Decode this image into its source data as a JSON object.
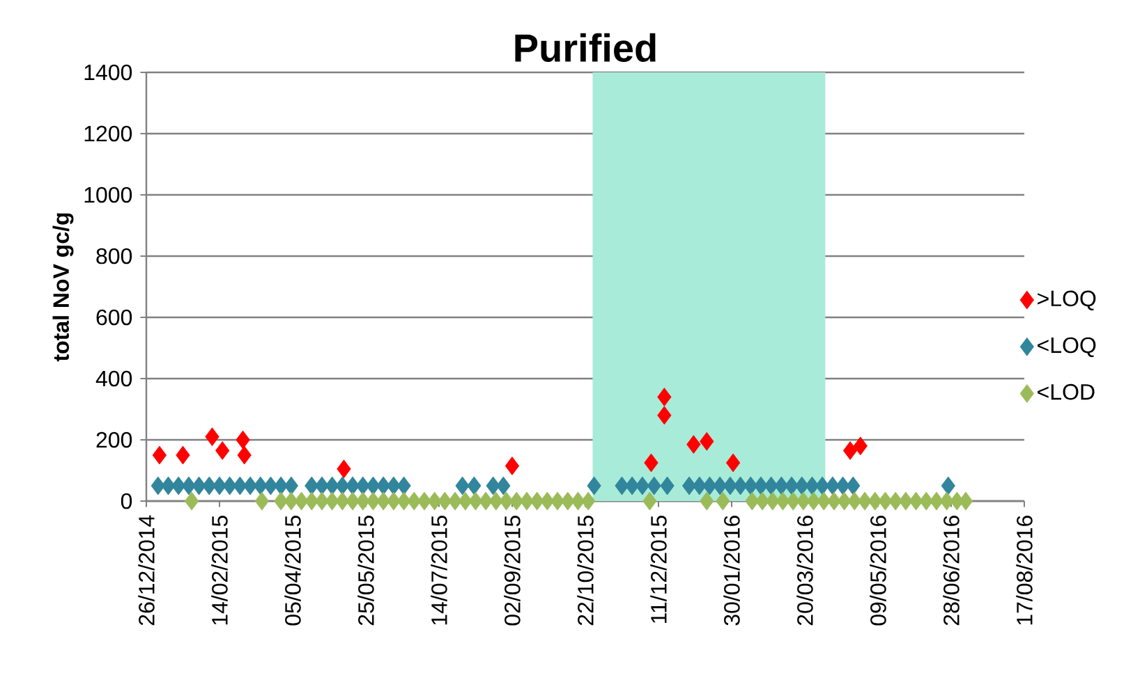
{
  "chart_data": {
    "type": "scatter",
    "title": "Purified",
    "ylabel": "total NoV gc/g",
    "xlim": [
      "2014-12-26",
      "2016-08-17"
    ],
    "xticks": [
      {
        "value": "2014-12-26",
        "label": "26/12/2014"
      },
      {
        "value": "2015-02-14",
        "label": "14/02/2015"
      },
      {
        "value": "2015-04-05",
        "label": "05/04/2015"
      },
      {
        "value": "2015-05-25",
        "label": "25/05/2015"
      },
      {
        "value": "2015-07-14",
        "label": "14/07/2015"
      },
      {
        "value": "2015-09-02",
        "label": "02/09/2015"
      },
      {
        "value": "2015-10-22",
        "label": "22/10/2015"
      },
      {
        "value": "2015-12-11",
        "label": "11/12/2015"
      },
      {
        "value": "2016-01-30",
        "label": "30/01/2016"
      },
      {
        "value": "2016-03-20",
        "label": "20/03/2016"
      },
      {
        "value": "2016-05-09",
        "label": "09/05/2016"
      },
      {
        "value": "2016-06-28",
        "label": "28/06/2016"
      },
      {
        "value": "2016-08-17",
        "label": "17/08/2016"
      }
    ],
    "ylim": [
      0,
      1400
    ],
    "yticks": [
      0,
      200,
      400,
      600,
      800,
      1000,
      1200,
      1400
    ],
    "grid": "y",
    "legend": "right",
    "marker": "diamond",
    "bands": [
      {
        "axis": "x",
        "from": "2015-10-27",
        "to": "2016-04-03",
        "color": "#a8ebd8"
      }
    ],
    "series": [
      {
        "name": ">LOQ",
        "color": "#ff0000",
        "x": [
          "2015-01-04",
          "2015-01-20",
          "2015-02-09",
          "2015-02-16",
          "2015-03-02",
          "2015-03-03",
          "2015-05-10",
          "2015-09-02",
          "2015-12-06",
          "2015-12-15",
          "2015-12-15",
          "2016-01-04",
          "2016-01-13",
          "2016-01-31",
          "2016-04-20",
          "2016-04-27"
        ],
        "values": [
          150,
          150,
          210,
          165,
          200,
          150,
          105,
          115,
          125,
          340,
          280,
          185,
          195,
          125,
          165,
          180
        ]
      },
      {
        "name": "<LOQ",
        "color": "#31859c",
        "x": [
          "2015-01-03",
          "2015-01-10",
          "2015-01-17",
          "2015-01-24",
          "2015-01-31",
          "2015-02-07",
          "2015-02-14",
          "2015-02-21",
          "2015-02-28",
          "2015-03-07",
          "2015-03-14",
          "2015-03-21",
          "2015-03-28",
          "2015-04-04",
          "2015-04-18",
          "2015-04-25",
          "2015-05-02",
          "2015-05-09",
          "2015-05-16",
          "2015-05-23",
          "2015-05-30",
          "2015-06-06",
          "2015-06-13",
          "2015-06-20",
          "2015-07-30",
          "2015-08-07",
          "2015-08-20",
          "2015-08-27",
          "2015-10-28",
          "2015-11-16",
          "2015-11-23",
          "2015-11-30",
          "2015-12-08",
          "2015-12-17",
          "2016-01-01",
          "2016-01-08",
          "2016-01-15",
          "2016-01-22",
          "2016-01-29",
          "2016-02-05",
          "2016-02-12",
          "2016-02-19",
          "2016-02-26",
          "2016-03-04",
          "2016-03-11",
          "2016-03-18",
          "2016-03-25",
          "2016-04-01",
          "2016-04-08",
          "2016-04-15",
          "2016-04-22",
          "2016-06-26"
        ],
        "values": [
          50,
          50,
          50,
          50,
          50,
          50,
          50,
          50,
          50,
          50,
          50,
          50,
          50,
          50,
          50,
          50,
          50,
          50,
          50,
          50,
          50,
          50,
          50,
          50,
          50,
          50,
          50,
          50,
          50,
          50,
          50,
          50,
          50,
          50,
          50,
          50,
          50,
          50,
          50,
          50,
          50,
          50,
          50,
          50,
          50,
          50,
          50,
          50,
          50,
          50,
          50,
          50
        ]
      },
      {
        "name": "<LOD",
        "color": "#9bbb59",
        "x": [
          "2015-01-26",
          "2015-03-15",
          "2015-03-28",
          "2015-04-04",
          "2015-04-11",
          "2015-04-18",
          "2015-04-25",
          "2015-05-02",
          "2015-05-09",
          "2015-05-16",
          "2015-05-23",
          "2015-05-30",
          "2015-06-06",
          "2015-06-13",
          "2015-06-20",
          "2015-06-27",
          "2015-07-04",
          "2015-07-11",
          "2015-07-18",
          "2015-07-25",
          "2015-08-01",
          "2015-08-08",
          "2015-08-15",
          "2015-08-22",
          "2015-08-29",
          "2015-09-05",
          "2015-09-12",
          "2015-09-19",
          "2015-09-26",
          "2015-10-03",
          "2015-10-10",
          "2015-10-17",
          "2015-10-24",
          "2015-12-05",
          "2016-01-13",
          "2016-01-24",
          "2016-02-13",
          "2016-02-20",
          "2016-02-27",
          "2016-03-05",
          "2016-03-12",
          "2016-03-19",
          "2016-03-26",
          "2016-04-02",
          "2016-04-09",
          "2016-04-16",
          "2016-04-23",
          "2016-04-30",
          "2016-05-07",
          "2016-05-14",
          "2016-05-21",
          "2016-05-28",
          "2016-06-04",
          "2016-06-11",
          "2016-06-18",
          "2016-06-25",
          "2016-07-02",
          "2016-07-08"
        ],
        "values": [
          0,
          0,
          0,
          0,
          0,
          0,
          0,
          0,
          0,
          0,
          0,
          0,
          0,
          0,
          0,
          0,
          0,
          0,
          0,
          0,
          0,
          0,
          0,
          0,
          0,
          0,
          0,
          0,
          0,
          0,
          0,
          0,
          0,
          0,
          0,
          0,
          0,
          0,
          0,
          0,
          0,
          0,
          0,
          0,
          0,
          0,
          0,
          0,
          0,
          0,
          0,
          0,
          0,
          0,
          0,
          0,
          0,
          0
        ]
      }
    ]
  }
}
